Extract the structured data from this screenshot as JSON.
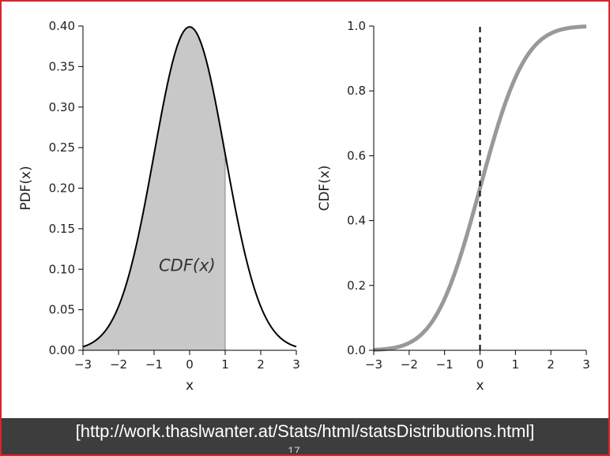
{
  "colors": {
    "frame_border": "#d9262c",
    "fill_area": "#c8c8c8",
    "pdf_line": "#000000",
    "cdf_line": "#999999",
    "footer_bg": "#3d3d3d",
    "footer_text": "#ffffff"
  },
  "footer": {
    "source_text": "[http://work.thaslwanter.at/Stats/html/statsDistributions.html]",
    "page_fragment": "17"
  },
  "chart_data": [
    {
      "type": "area",
      "function": "standard normal probability density",
      "xlabel": "x",
      "ylabel": "PDF(x)",
      "xlim": [
        -3,
        3
      ],
      "ylim": [
        0,
        0.4
      ],
      "xticks": [
        -3,
        -2,
        -1,
        0,
        1,
        2,
        3
      ],
      "xtick_labels": [
        "−3",
        "−2",
        "−1",
        "0",
        "1",
        "2",
        "3"
      ],
      "yticks": [
        0,
        0.05,
        0.1,
        0.15,
        0.2,
        0.25,
        0.3,
        0.35,
        0.4
      ],
      "ytick_labels": [
        "0.00",
        "0.05",
        "0.10",
        "0.15",
        "0.20",
        "0.25",
        "0.30",
        "0.35",
        "0.40"
      ],
      "shaded_from": -3,
      "shaded_to": 1,
      "annotation": "CDF(x)",
      "grid": false
    },
    {
      "type": "line",
      "function": "standard normal cumulative distribution",
      "xlabel": "x",
      "ylabel": "CDF(x)",
      "xlim": [
        -3,
        3
      ],
      "ylim": [
        0,
        1
      ],
      "xticks": [
        -3,
        -2,
        -1,
        0,
        1,
        2,
        3
      ],
      "xtick_labels": [
        "−3",
        "−2",
        "−1",
        "0",
        "1",
        "2",
        "3"
      ],
      "yticks": [
        0,
        0.2,
        0.4,
        0.6,
        0.8,
        1.0
      ],
      "ytick_labels": [
        "0.0",
        "0.2",
        "0.4",
        "0.6",
        "0.8",
        "1.0"
      ],
      "vertical_dashed_line_x": 0,
      "grid": false
    }
  ]
}
